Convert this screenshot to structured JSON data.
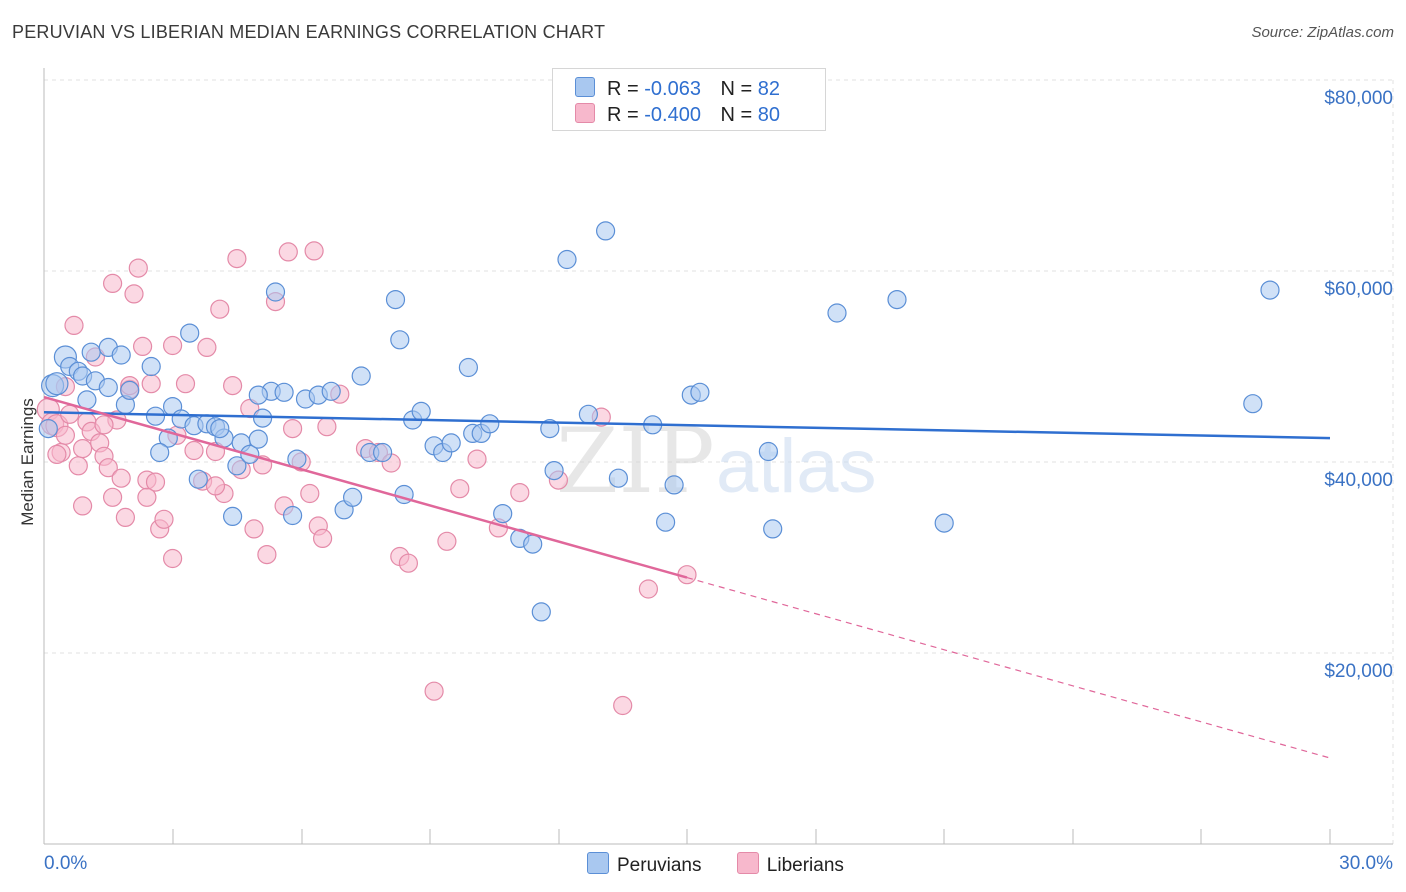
{
  "header": {
    "title": "PERUVIAN VS LIBERIAN MEDIAN EARNINGS CORRELATION CHART",
    "source": "Source: ZipAtlas.com"
  },
  "watermark": {
    "zip": "ZIP",
    "atlas": "atlas"
  },
  "legend_top": [
    {
      "r_label": "R =",
      "r_value": "-0.063",
      "n_label": "N =",
      "n_value": "82"
    },
    {
      "r_label": "R =",
      "r_value": "-0.400",
      "n_label": "N =",
      "n_value": "80"
    }
  ],
  "legend_bottom": [
    {
      "label": "Peruvians"
    },
    {
      "label": "Liberians"
    }
  ],
  "colors": {
    "peruvian_fill": "#a9c8f0",
    "peruvian_stroke": "#5b8fd6",
    "peruvian_line": "#2f6fd0",
    "liberian_fill": "#f7b8cc",
    "liberian_stroke": "#e48aa8",
    "liberian_line": "#e0679a",
    "tick_text": "#3a72c4"
  },
  "chart_data": {
    "type": "scatter",
    "title": "PERUVIAN VS LIBERIAN MEDIAN EARNINGS CORRELATION CHART",
    "xlabel": "",
    "ylabel": "Median Earnings",
    "xlim": [
      0,
      30
    ],
    "ylim": [
      0,
      80000
    ],
    "x_tick_labels": [
      "0.0%",
      "30.0%"
    ],
    "y_ticks": [
      20000,
      40000,
      60000,
      80000
    ],
    "y_tick_labels": [
      "$20,000",
      "$40,000",
      "$60,000",
      "$80,000"
    ],
    "grid": true,
    "series": [
      {
        "name": "Peruvians",
        "r": -0.063,
        "n": 82,
        "trend": {
          "x0": 0,
          "y0": 45200,
          "x1": 30,
          "y1": 42500,
          "dashed_from": null
        },
        "points": [
          [
            0.2,
            48000
          ],
          [
            0.3,
            48200
          ],
          [
            0.5,
            51000
          ],
          [
            0.6,
            50000
          ],
          [
            0.8,
            49500
          ],
          [
            0.9,
            49000
          ],
          [
            1.1,
            51500
          ],
          [
            1.2,
            48500
          ],
          [
            1.5,
            52000
          ],
          [
            1.5,
            47800
          ],
          [
            1.8,
            51200
          ],
          [
            1.9,
            46000
          ],
          [
            2.0,
            47500
          ],
          [
            2.5,
            50000
          ],
          [
            2.6,
            44800
          ],
          [
            2.9,
            42500
          ],
          [
            3.0,
            45800
          ],
          [
            3.2,
            44500
          ],
          [
            3.4,
            53500
          ],
          [
            3.5,
            43800
          ],
          [
            3.6,
            38200
          ],
          [
            3.8,
            44000
          ],
          [
            4.0,
            43700
          ],
          [
            4.2,
            42500
          ],
          [
            4.4,
            34300
          ],
          [
            4.5,
            39600
          ],
          [
            4.6,
            42000
          ],
          [
            4.8,
            40800
          ],
          [
            5.0,
            42400
          ],
          [
            5.1,
            44600
          ],
          [
            5.3,
            47400
          ],
          [
            5.4,
            57800
          ],
          [
            5.6,
            47300
          ],
          [
            5.8,
            34400
          ],
          [
            5.9,
            40300
          ],
          [
            6.1,
            46600
          ],
          [
            6.4,
            47000
          ],
          [
            6.7,
            47400
          ],
          [
            7.0,
            35000
          ],
          [
            7.2,
            36300
          ],
          [
            7.4,
            49000
          ],
          [
            7.6,
            41000
          ],
          [
            7.9,
            41000
          ],
          [
            8.2,
            57000
          ],
          [
            8.3,
            52800
          ],
          [
            8.4,
            36600
          ],
          [
            8.6,
            44400
          ],
          [
            8.8,
            45300
          ],
          [
            9.1,
            41700
          ],
          [
            9.3,
            41000
          ],
          [
            9.5,
            42000
          ],
          [
            9.9,
            49900
          ],
          [
            10.0,
            43000
          ],
          [
            10.2,
            43000
          ],
          [
            10.4,
            44000
          ],
          [
            10.7,
            34600
          ],
          [
            11.1,
            32000
          ],
          [
            11.4,
            31400
          ],
          [
            11.8,
            43500
          ],
          [
            11.9,
            39100
          ],
          [
            12.2,
            61200
          ],
          [
            12.7,
            45000
          ],
          [
            13.1,
            64200
          ],
          [
            13.4,
            38300
          ],
          [
            14.2,
            43900
          ],
          [
            14.5,
            33700
          ],
          [
            14.7,
            37600
          ],
          [
            15.1,
            47000
          ],
          [
            15.3,
            47300
          ],
          [
            16.9,
            41100
          ],
          [
            17.0,
            33000
          ],
          [
            18.5,
            55600
          ],
          [
            19.9,
            57000
          ],
          [
            21.0,
            33600
          ],
          [
            28.2,
            46100
          ],
          [
            28.6,
            58000
          ],
          [
            11.6,
            24300
          ],
          [
            5.0,
            47000
          ],
          [
            2.7,
            41000
          ],
          [
            1.0,
            46500
          ],
          [
            0.1,
            43500
          ],
          [
            4.1,
            43500
          ]
        ]
      },
      {
        "name": "Liberians",
        "r": -0.4,
        "n": 80,
        "trend": {
          "x0": 0,
          "y0": 46800,
          "x1": 30,
          "y1": 9000,
          "dashed_from": 15
        },
        "points": [
          [
            0.1,
            45500
          ],
          [
            0.2,
            44000
          ],
          [
            0.3,
            43800
          ],
          [
            0.4,
            41000
          ],
          [
            0.5,
            42800
          ],
          [
            0.6,
            45000
          ],
          [
            0.7,
            54300
          ],
          [
            0.8,
            39600
          ],
          [
            0.9,
            41400
          ],
          [
            1.0,
            44200
          ],
          [
            1.1,
            43200
          ],
          [
            1.2,
            51000
          ],
          [
            1.3,
            42000
          ],
          [
            1.4,
            40600
          ],
          [
            1.5,
            39400
          ],
          [
            1.6,
            36300
          ],
          [
            1.7,
            44400
          ],
          [
            1.8,
            38300
          ],
          [
            1.9,
            34200
          ],
          [
            2.0,
            47600
          ],
          [
            2.1,
            57600
          ],
          [
            2.2,
            60300
          ],
          [
            2.3,
            52100
          ],
          [
            2.4,
            38100
          ],
          [
            2.5,
            48200
          ],
          [
            2.6,
            37900
          ],
          [
            2.7,
            33000
          ],
          [
            2.8,
            34000
          ],
          [
            3.0,
            52200
          ],
          [
            3.1,
            42800
          ],
          [
            3.3,
            48200
          ],
          [
            3.5,
            41200
          ],
          [
            3.7,
            38000
          ],
          [
            3.8,
            52000
          ],
          [
            4.0,
            41100
          ],
          [
            4.1,
            56000
          ],
          [
            4.2,
            36700
          ],
          [
            4.4,
            48000
          ],
          [
            4.5,
            61300
          ],
          [
            4.6,
            39200
          ],
          [
            4.8,
            45600
          ],
          [
            4.9,
            33000
          ],
          [
            5.1,
            39700
          ],
          [
            5.2,
            30300
          ],
          [
            5.4,
            56800
          ],
          [
            5.6,
            35400
          ],
          [
            5.7,
            62000
          ],
          [
            5.8,
            43500
          ],
          [
            6.0,
            40000
          ],
          [
            6.2,
            36700
          ],
          [
            6.4,
            33300
          ],
          [
            6.5,
            32000
          ],
          [
            6.6,
            43700
          ],
          [
            6.9,
            47100
          ],
          [
            7.5,
            41400
          ],
          [
            7.8,
            41000
          ],
          [
            8.1,
            39900
          ],
          [
            8.3,
            30100
          ],
          [
            8.5,
            29400
          ],
          [
            9.1,
            16000
          ],
          [
            9.4,
            31700
          ],
          [
            9.7,
            37200
          ],
          [
            10.1,
            40300
          ],
          [
            10.6,
            33100
          ],
          [
            11.1,
            36800
          ],
          [
            12.0,
            38100
          ],
          [
            13.0,
            44700
          ],
          [
            13.5,
            14500
          ],
          [
            14.1,
            26700
          ],
          [
            15.0,
            28200
          ],
          [
            6.3,
            62100
          ],
          [
            1.6,
            58700
          ],
          [
            0.5,
            47900
          ],
          [
            2.0,
            48000
          ],
          [
            3.0,
            29900
          ],
          [
            0.9,
            35400
          ],
          [
            1.4,
            43900
          ],
          [
            2.4,
            36300
          ],
          [
            4.0,
            37500
          ],
          [
            0.3,
            40800
          ]
        ]
      }
    ]
  }
}
